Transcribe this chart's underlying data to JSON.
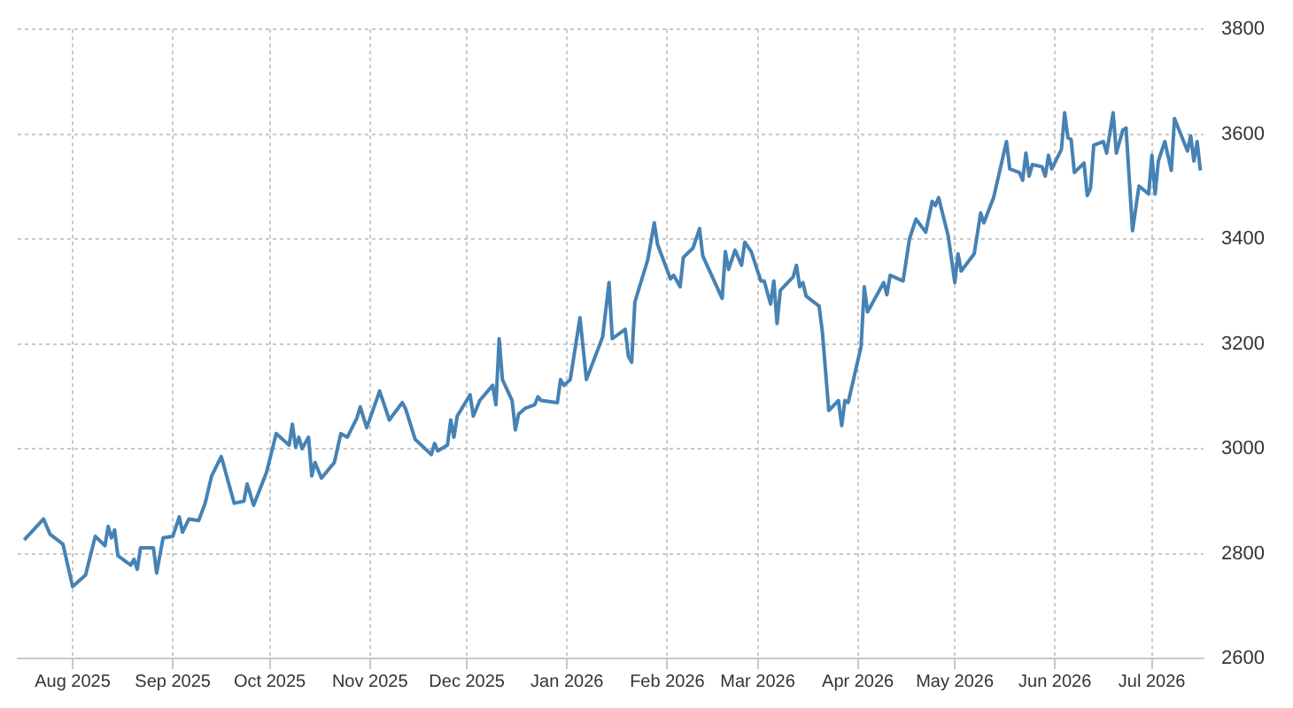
{
  "chart_data": {
    "type": "line",
    "xlim": [
      "2025-07-15",
      "2026-07-17"
    ],
    "ylim": [
      2600,
      3800
    ],
    "yticks": [
      2600,
      2800,
      3000,
      3200,
      3400,
      3600,
      3800
    ],
    "xticks": [
      {
        "value": "2025-08-01",
        "label": "Aug 2025"
      },
      {
        "value": "2025-09-01",
        "label": "Sep 2025"
      },
      {
        "value": "2025-10-01",
        "label": "Oct 2025"
      },
      {
        "value": "2025-11-01",
        "label": "Nov 2025"
      },
      {
        "value": "2025-12-01",
        "label": "Dec 2025"
      },
      {
        "value": "2026-01-01",
        "label": "Jan 2026"
      },
      {
        "value": "2026-02-01",
        "label": "Feb 2026"
      },
      {
        "value": "2026-03-01",
        "label": "Mar 2026"
      },
      {
        "value": "2026-04-01",
        "label": "Apr 2026"
      },
      {
        "value": "2026-05-01",
        "label": "May 2026"
      },
      {
        "value": "2026-06-01",
        "label": "Jun 2026"
      },
      {
        "value": "2026-07-01",
        "label": "Jul 2026"
      }
    ],
    "grid": true,
    "legend": false,
    "marker": "none",
    "line_style": "solid",
    "x": [
      "2025-07-17",
      "2025-07-23",
      "2025-07-25",
      "2025-07-29",
      "2025-08-01",
      "2025-08-05",
      "2025-08-08",
      "2025-08-11",
      "2025-08-12",
      "2025-08-13",
      "2025-08-14",
      "2025-08-15",
      "2025-08-19",
      "2025-08-20",
      "2025-08-21",
      "2025-08-22",
      "2025-08-26",
      "2025-08-27",
      "2025-08-29",
      "2025-09-01",
      "2025-09-03",
      "2025-09-04",
      "2025-09-06",
      "2025-09-09",
      "2025-09-11",
      "2025-09-13",
      "2025-09-16",
      "2025-09-20",
      "2025-09-23",
      "2025-09-24",
      "2025-09-26",
      "2025-09-30",
      "2025-10-03",
      "2025-10-07",
      "2025-10-08",
      "2025-10-09",
      "2025-10-10",
      "2025-10-11",
      "2025-10-13",
      "2025-10-14",
      "2025-10-15",
      "2025-10-17",
      "2025-10-21",
      "2025-10-23",
      "2025-10-25",
      "2025-10-28",
      "2025-10-29",
      "2025-10-31",
      "2025-11-04",
      "2025-11-07",
      "2025-11-11",
      "2025-11-12",
      "2025-11-15",
      "2025-11-20",
      "2025-11-21",
      "2025-11-22",
      "2025-11-25",
      "2025-11-26",
      "2025-11-27",
      "2025-11-28",
      "2025-12-02",
      "2025-12-03",
      "2025-12-05",
      "2025-12-09",
      "2025-12-10",
      "2025-12-11",
      "2025-12-12",
      "2025-12-15",
      "2025-12-16",
      "2025-12-17",
      "2025-12-19",
      "2025-12-22",
      "2025-12-23",
      "2025-12-24",
      "2025-12-29",
      "2025-12-30",
      "2025-12-31",
      "2026-01-02",
      "2026-01-05",
      "2026-01-07",
      "2026-01-12",
      "2026-01-14",
      "2026-01-15",
      "2026-01-19",
      "2026-01-20",
      "2026-01-21",
      "2026-01-22",
      "2026-01-26",
      "2026-01-28",
      "2026-01-29",
      "2026-02-02",
      "2026-02-03",
      "2026-02-05",
      "2026-02-06",
      "2026-02-09",
      "2026-02-11",
      "2026-02-12",
      "2026-02-18",
      "2026-02-19",
      "2026-02-20",
      "2026-02-22",
      "2026-02-24",
      "2026-02-25",
      "2026-02-27",
      "2026-03-02",
      "2026-03-03",
      "2026-03-05",
      "2026-03-06",
      "2026-03-07",
      "2026-03-08",
      "2026-03-12",
      "2026-03-13",
      "2026-03-14",
      "2026-03-15",
      "2026-03-16",
      "2026-03-20",
      "2026-03-21",
      "2026-03-23",
      "2026-03-26",
      "2026-03-27",
      "2026-03-28",
      "2026-03-29",
      "2026-04-02",
      "2026-04-03",
      "2026-04-04",
      "2026-04-09",
      "2026-04-10",
      "2026-04-11",
      "2026-04-15",
      "2026-04-17",
      "2026-04-19",
      "2026-04-22",
      "2026-04-24",
      "2026-04-25",
      "2026-04-26",
      "2026-04-29",
      "2026-05-01",
      "2026-05-02",
      "2026-05-03",
      "2026-05-07",
      "2026-05-09",
      "2026-05-10",
      "2026-05-13",
      "2026-05-17",
      "2026-05-18",
      "2026-05-21",
      "2026-05-22",
      "2026-05-23",
      "2026-05-24",
      "2026-05-25",
      "2026-05-28",
      "2026-05-29",
      "2026-05-30",
      "2026-05-31",
      "2026-06-03",
      "2026-06-04",
      "2026-06-05",
      "2026-06-06",
      "2026-06-07",
      "2026-06-10",
      "2026-06-11",
      "2026-06-12",
      "2026-06-13",
      "2026-06-16",
      "2026-06-17",
      "2026-06-19",
      "2026-06-20",
      "2026-06-22",
      "2026-06-23",
      "2026-06-25",
      "2026-06-27",
      "2026-06-30",
      "2026-07-01",
      "2026-07-02",
      "2026-07-03",
      "2026-07-05",
      "2026-07-07",
      "2026-07-08",
      "2026-07-12",
      "2026-07-13",
      "2026-07-14",
      "2026-07-15",
      "2026-07-16"
    ],
    "series": [
      {
        "color": "#4682b4",
        "values": [
          2826,
          2866,
          2837,
          2818,
          2737,
          2759,
          2833,
          2815,
          2852,
          2830,
          2845,
          2796,
          2778,
          2789,
          2770,
          2811,
          2811,
          2763,
          2830,
          2833,
          2870,
          2841,
          2866,
          2863,
          2896,
          2948,
          2985,
          2896,
          2900,
          2933,
          2892,
          2955,
          3029,
          3007,
          3047,
          3003,
          3022,
          3000,
          3022,
          2948,
          2974,
          2944,
          2974,
          3029,
          3022,
          3059,
          3080,
          3040,
          3110,
          3055,
          3088,
          3077,
          3018,
          2989,
          3010,
          2996,
          3007,
          3055,
          3022,
          3062,
          3103,
          3062,
          3092,
          3121,
          3084,
          3210,
          3132,
          3092,
          3036,
          3066,
          3077,
          3084,
          3099,
          3092,
          3088,
          3132,
          3121,
          3132,
          3250,
          3132,
          3213,
          3317,
          3210,
          3228,
          3176,
          3165,
          3280,
          3361,
          3431,
          3390,
          3324,
          3331,
          3309,
          3365,
          3383,
          3420,
          3368,
          3287,
          3376,
          3342,
          3379,
          3350,
          3394,
          3376,
          3320,
          3320,
          3276,
          3320,
          3239,
          3302,
          3328,
          3350,
          3309,
          3317,
          3291,
          3272,
          3224,
          3073,
          3092,
          3044,
          3092,
          3088,
          3195,
          3309,
          3261,
          3317,
          3294,
          3331,
          3320,
          3401,
          3438,
          3413,
          3472,
          3464,
          3479,
          3405,
          3317,
          3372,
          3339,
          3372,
          3450,
          3431,
          3479,
          3586,
          3534,
          3527,
          3512,
          3564,
          3520,
          3542,
          3538,
          3520,
          3560,
          3534,
          3571,
          3641,
          3593,
          3590,
          3527,
          3545,
          3483,
          3497,
          3579,
          3586,
          3564,
          3641,
          3564,
          3608,
          3612,
          3416,
          3501,
          3486,
          3560,
          3486,
          3549,
          3586,
          3531,
          3630,
          3568,
          3597,
          3549,
          3586,
          3531
        ]
      }
    ]
  }
}
